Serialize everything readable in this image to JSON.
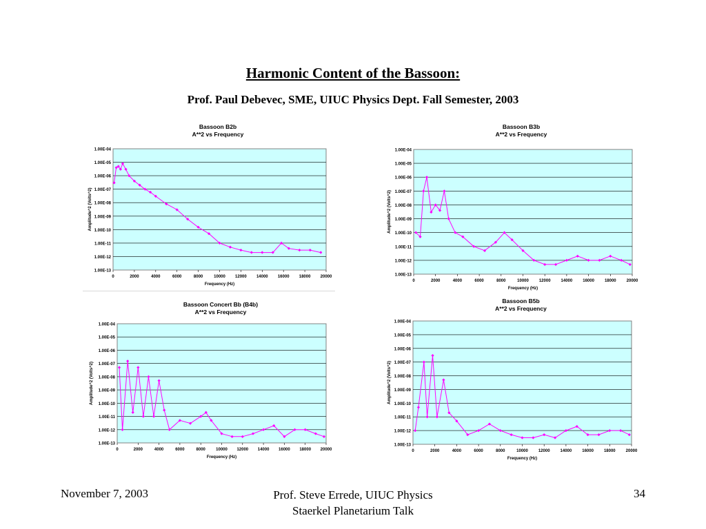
{
  "slide": {
    "title": "Harmonic Content of the Bassoon:",
    "subtitle": "Prof. Paul Debevec, SME, UIUC Physics Dept. Fall Semester, 2003"
  },
  "footer": {
    "date": "November 7, 2003",
    "presenter": "Prof. Steve Errede, UIUC Physics",
    "venue": "Staerkel Planetarium Talk",
    "page_number": "34"
  },
  "colors": {
    "plot_background": "#ccffff",
    "series": "#ff00ff",
    "gridline": "#000000"
  },
  "chart_data": [
    {
      "type": "line",
      "title": "Bassoon B2b",
      "subtitle": "A**2 vs Frequency",
      "xlabel": "Frequency (Hz)",
      "ylabel": "Amplitude^2 (Volts^2)",
      "xlim": [
        0,
        20000
      ],
      "ylim": [
        1e-13,
        0.0001
      ],
      "yscale": "log",
      "grid": true,
      "x_ticks": [
        "0",
        "2000",
        "4000",
        "6000",
        "8000",
        "10000",
        "12000",
        "14000",
        "16000",
        "18000",
        "20000"
      ],
      "y_ticks": [
        "1.00E-04",
        "1.00E-05",
        "1.00E-06",
        "1.00E-07",
        "1.00E-08",
        "1.00E-09",
        "1.00E-10",
        "1.00E-11",
        "1.00E-12",
        "1.00E-13"
      ],
      "series": [
        {
          "x": [
            100,
            300,
            500,
            700,
            900,
            1200,
            1500,
            2000,
            2500,
            3000,
            3500,
            4000,
            5000,
            6000,
            7000,
            8000,
            9000,
            10000,
            11000,
            12000,
            13000,
            14000,
            15000,
            15800,
            16500,
            17500,
            18500,
            19500
          ],
          "y": [
            3e-07,
            4e-06,
            5e-06,
            3e-06,
            8e-06,
            3e-06,
            1e-06,
            4e-07,
            2e-07,
            1e-07,
            6e-08,
            3e-08,
            8e-09,
            3e-09,
            6e-10,
            1.5e-10,
            5e-11,
            1e-11,
            5e-12,
            3e-12,
            2e-12,
            2e-12,
            2e-12,
            1e-11,
            4e-12,
            3e-12,
            3e-12,
            2e-12
          ]
        }
      ]
    },
    {
      "type": "line",
      "title": "Bassoon B3b",
      "subtitle": "A**2 vs Frequency",
      "xlabel": "Frequency (Hz)",
      "ylabel": "Amplitude^2 (Volts^2)",
      "xlim": [
        0,
        20000
      ],
      "ylim": [
        1e-13,
        0.0001
      ],
      "yscale": "log",
      "grid": true,
      "x_ticks": [
        "0",
        "2000",
        "4000",
        "6000",
        "8000",
        "10000",
        "12000",
        "14000",
        "16000",
        "18000",
        "20000"
      ],
      "y_ticks": [
        "1.00E-04",
        "1.00E-05",
        "1.00E-06",
        "1.00E-07",
        "1.00E-08",
        "1.00E-09",
        "1.00E-10",
        "1.00E-11",
        "1.00E-12",
        "1.00E-13"
      ],
      "series": [
        {
          "x": [
            200,
            600,
            900,
            1200,
            1600,
            2000,
            2400,
            2800,
            3200,
            3800,
            4500,
            5500,
            6500,
            7500,
            8300,
            9000,
            10000,
            11000,
            12000,
            13000,
            14000,
            15000,
            16000,
            17000,
            18000,
            19000,
            19800
          ],
          "y": [
            1e-10,
            5e-11,
            1e-07,
            1e-06,
            3e-09,
            1e-08,
            4e-09,
            1e-07,
            1e-09,
            1e-10,
            5e-11,
            1e-11,
            5e-12,
            2e-11,
            1e-10,
            3e-11,
            5e-12,
            1e-12,
            5e-13,
            5e-13,
            1e-12,
            2e-12,
            1e-12,
            1e-12,
            2e-12,
            1e-12,
            5e-13
          ]
        }
      ]
    },
    {
      "type": "line",
      "title": "Bassoon Concert Bb (B4b)",
      "subtitle": "A**2 vs Frequency",
      "xlabel": "Frequency (Hz)",
      "ylabel": "Amplitude^2 (Volts^2)",
      "xlim": [
        0,
        20000
      ],
      "ylim": [
        1e-13,
        0.0001
      ],
      "yscale": "log",
      "grid": true,
      "x_ticks": [
        "0",
        "2000",
        "4000",
        "6000",
        "8000",
        "10000",
        "12000",
        "14000",
        "16000",
        "18000",
        "20000"
      ],
      "y_ticks": [
        "1.00E-04",
        "1.00E-05",
        "1.00E-06",
        "1.00E-07",
        "1.00E-08",
        "1.00E-09",
        "1.00E-10",
        "1.00E-11",
        "1.00E-12",
        "1.00E-13"
      ],
      "series": [
        {
          "x": [
            200,
            500,
            1000,
            1500,
            2000,
            2500,
            3000,
            3500,
            4000,
            4500,
            5000,
            6000,
            7000,
            8000,
            8500,
            9000,
            10000,
            11000,
            12000,
            13000,
            14000,
            15000,
            16000,
            17000,
            18000,
            19000,
            19800
          ],
          "y": [
            5e-08,
            1e-12,
            1.5e-07,
            2e-11,
            5e-08,
            1e-11,
            1e-08,
            1e-11,
            5e-09,
            3e-11,
            1e-12,
            5e-12,
            3e-12,
            1e-11,
            2e-11,
            5e-12,
            5e-13,
            3e-13,
            3e-13,
            5e-13,
            1e-12,
            2e-12,
            3e-13,
            1e-12,
            1e-12,
            5e-13,
            3e-13
          ]
        }
      ]
    },
    {
      "type": "line",
      "title": "Bassoon B5b",
      "subtitle": "A**2 vs Frequency",
      "xlabel": "Frequency (Hz)",
      "ylabel": "Amplitude^2 (Volts^2)",
      "xlim": [
        0,
        20000
      ],
      "ylim": [
        1e-13,
        0.0001
      ],
      "yscale": "log",
      "grid": true,
      "x_ticks": [
        "0",
        "2000",
        "4000",
        "6000",
        "8000",
        "10000",
        "12000",
        "14000",
        "16000",
        "18000",
        "20000"
      ],
      "y_ticks": [
        "1.00E-04",
        "1.00E-05",
        "1.00E-06",
        "1.00E-07",
        "1.00E-08",
        "1.00E-09",
        "1.00E-10",
        "1.00E-11",
        "1.00E-12",
        "1.00E-13"
      ],
      "series": [
        {
          "x": [
            200,
            500,
            1000,
            1300,
            1800,
            2200,
            2800,
            3300,
            4000,
            5000,
            6000,
            7000,
            8000,
            9000,
            10000,
            11000,
            12000,
            13000,
            14000,
            15000,
            16000,
            17000,
            18000,
            19000,
            19800
          ],
          "y": [
            1e-12,
            5e-11,
            1e-07,
            1e-11,
            3e-07,
            1e-11,
            5e-09,
            2e-11,
            5e-12,
            5e-13,
            1e-12,
            3e-12,
            1e-12,
            5e-13,
            3e-13,
            3e-13,
            5e-13,
            3e-13,
            1e-12,
            2e-12,
            5e-13,
            5e-13,
            1e-12,
            1e-12,
            5e-13
          ]
        }
      ]
    }
  ]
}
